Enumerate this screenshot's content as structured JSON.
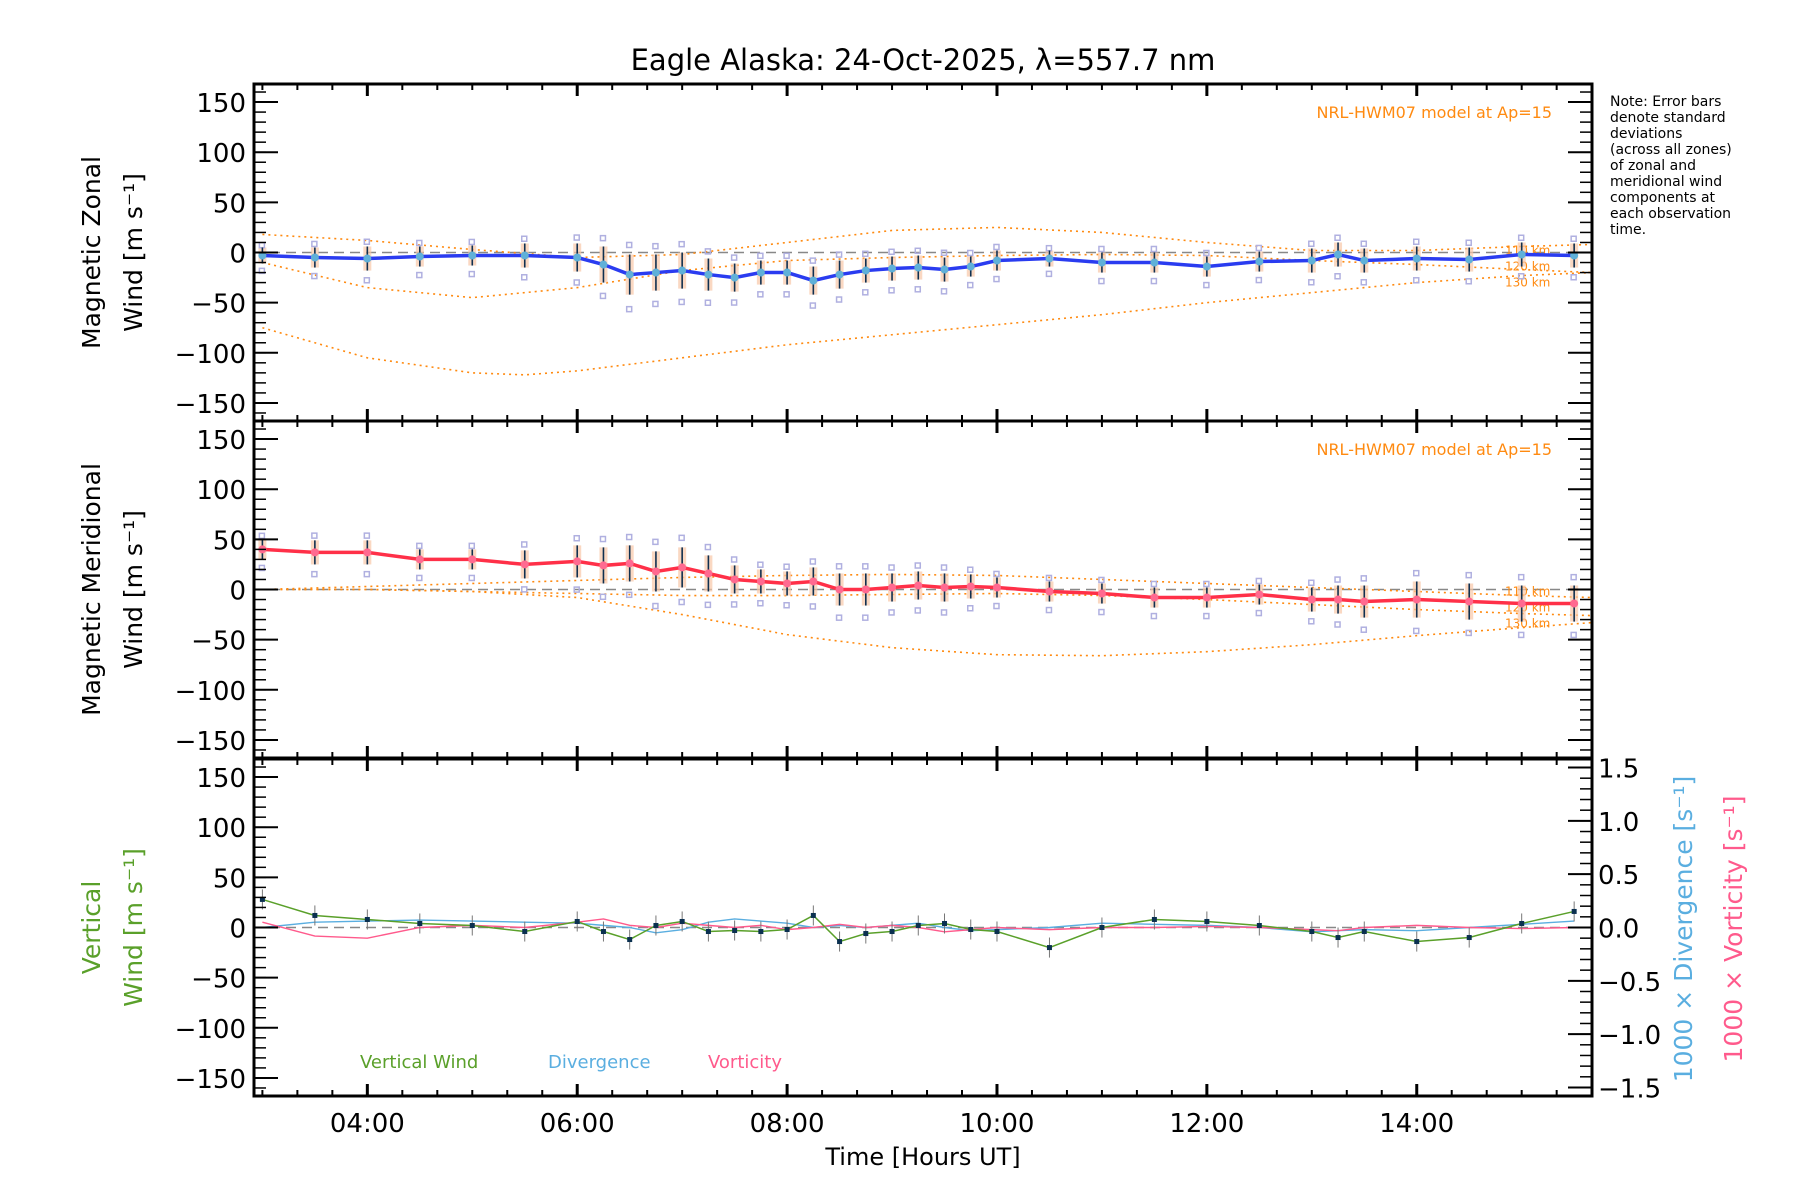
{
  "chart_data": {
    "type": "line",
    "title": "Eagle Alaska: 24-Oct-2025, λ=557.7 nm",
    "xlabel": "Time [Hours UT]",
    "xlim": [
      2.92,
      15.67
    ],
    "xticks": [
      4,
      6,
      8,
      10,
      12,
      14
    ],
    "xtick_labels": [
      "04:00",
      "06:00",
      "08:00",
      "10:00",
      "12:00",
      "14:00"
    ],
    "note": [
      "Note: Error bars",
      "denote standard",
      "deviations",
      "(across all zones)",
      "of zonal and",
      "meridional wind",
      "components at",
      "each observation",
      "time."
    ],
    "colors": {
      "zonal": "#2a3cf0",
      "meridional": "#ff3048",
      "vertical": "#5aa02a",
      "divergence": "#5aaee0",
      "vorticity": "#ff5a8c",
      "model": "#ff8a10",
      "point": "#60b0d8",
      "errbar": "#103050"
    },
    "x": [
      3.0,
      3.5,
      4.0,
      4.5,
      5.0,
      5.5,
      6.0,
      6.25,
      6.5,
      6.75,
      7.0,
      7.25,
      7.5,
      7.75,
      8.0,
      8.25,
      8.5,
      8.75,
      9.0,
      9.25,
      9.5,
      9.75,
      10.0,
      10.5,
      11.0,
      11.5,
      12.0,
      12.5,
      13.0,
      13.25,
      13.5,
      14.0,
      14.5,
      15.0,
      15.5
    ],
    "panels": [
      {
        "ylabel": [
          "Magnetic Zonal",
          "Wind [m s⁻¹]"
        ],
        "ylim": [
          -168,
          168
        ],
        "yticks": [
          150,
          100,
          50,
          0,
          -50,
          -100,
          -150
        ],
        "ytick_labels": [
          "150",
          "100",
          "50",
          "0",
          "−50",
          "−100",
          "−150"
        ],
        "model_label": "NRL-HWM07 model at Ap=15",
        "series": [
          {
            "name": "Zonal wind",
            "values": [
              -3,
              -5,
              -6,
              -4,
              -3,
              -3,
              -5,
              -12,
              -22,
              -20,
              -18,
              -22,
              -25,
              -20,
              -20,
              -28,
              -22,
              -18,
              -16,
              -15,
              -17,
              -14,
              -8,
              -6,
              -10,
              -10,
              -14,
              -9,
              -8,
              -2,
              -8,
              -6,
              -7,
              -2,
              -3
            ],
            "std": [
              8,
              10,
              12,
              10,
              10,
              12,
              14,
              18,
              20,
              18,
              18,
              16,
              14,
              12,
              12,
              14,
              14,
              12,
              12,
              12,
              12,
              10,
              10,
              8,
              10,
              10,
              10,
              10,
              12,
              12,
              12,
              12,
              12,
              12,
              12
            ]
          }
        ],
        "models": [
          {
            "label": "110 km",
            "x": [
              3,
              4,
              5,
              6,
              7,
              8,
              9,
              10,
              11,
              12,
              13,
              14,
              15,
              15.67
            ],
            "values": [
              18,
              12,
              3,
              -5,
              -2,
              10,
              22,
              25,
              20,
              10,
              2,
              2,
              6,
              8
            ]
          },
          {
            "label": "120 km",
            "x": [
              3,
              4,
              5,
              6,
              7,
              8,
              9,
              10,
              11,
              12,
              13,
              14,
              15,
              15.67
            ],
            "values": [
              -10,
              -35,
              -45,
              -35,
              -18,
              -8,
              -5,
              -3,
              -2,
              -3,
              -8,
              -12,
              -17,
              -20
            ]
          },
          {
            "label": "130 km",
            "x": [
              3,
              4,
              5,
              5.5,
              6,
              7,
              8,
              9,
              10,
              11,
              12,
              13,
              14,
              15,
              15.67
            ],
            "values": [
              -75,
              -105,
              -120,
              -122,
              -118,
              -105,
              -92,
              -82,
              -72,
              -62,
              -50,
              -40,
              -30,
              -23,
              -20
            ]
          }
        ]
      },
      {
        "ylabel": [
          "Magnetic Meridional",
          "Wind [m s⁻¹]"
        ],
        "ylim": [
          -168,
          168
        ],
        "yticks": [
          150,
          100,
          50,
          0,
          -50,
          -100,
          -150
        ],
        "ytick_labels": [
          "150",
          "100",
          "50",
          "0",
          "−50",
          "−100",
          "−150"
        ],
        "model_label": "NRL-HWM07 model at Ap=15",
        "series": [
          {
            "name": "Meridional wind",
            "values": [
              40,
              37,
              37,
              30,
              30,
              25,
              28,
              24,
              26,
              18,
              22,
              16,
              10,
              8,
              6,
              8,
              0,
              0,
              2,
              4,
              2,
              3,
              2,
              -2,
              -4,
              -8,
              -8,
              -5,
              -10,
              -10,
              -12,
              -10,
              -12,
              -14,
              -14
            ],
            "std": [
              10,
              12,
              12,
              10,
              10,
              14,
              16,
              18,
              18,
              20,
              20,
              18,
              14,
              12,
              12,
              14,
              16,
              16,
              14,
              14,
              14,
              12,
              10,
              10,
              10,
              10,
              10,
              10,
              12,
              14,
              16,
              18,
              18,
              18,
              18
            ]
          }
        ],
        "models": [
          {
            "label": "110 km",
            "x": [
              3,
              4,
              5,
              6,
              7,
              8,
              9,
              10,
              11,
              12,
              13,
              14,
              15,
              15.67
            ],
            "values": [
              0,
              3,
              6,
              9,
              12,
              14,
              15,
              14,
              10,
              6,
              2,
              -2,
              -6,
              -8
            ]
          },
          {
            "label": "120 km",
            "x": [
              3,
              4,
              5,
              6,
              7,
              8,
              9,
              10,
              11,
              12,
              13,
              14,
              15,
              15.67
            ],
            "values": [
              0,
              0,
              -2,
              -4,
              -6,
              -6,
              -5,
              -4,
              -6,
              -10,
              -15,
              -20,
              -24,
              -26
            ]
          },
          {
            "label": "130 km",
            "x": [
              3,
              4,
              5,
              6,
              7,
              8,
              9,
              10,
              11,
              12,
              13,
              14,
              15,
              15.67
            ],
            "values": [
              0,
              0,
              -2,
              -8,
              -25,
              -45,
              -58,
              -65,
              -66,
              -62,
              -55,
              -46,
              -38,
              -33
            ]
          }
        ]
      },
      {
        "ylabel": [
          "Vertical",
          "Wind [m s⁻¹]"
        ],
        "ylim": [
          -168,
          168
        ],
        "yticks": [
          150,
          100,
          50,
          0,
          -50,
          -100,
          -150
        ],
        "ytick_labels": [
          "150",
          "100",
          "50",
          "0",
          "−50",
          "−100",
          "−150"
        ],
        "y2label_div": "1000 × Divergence [s⁻¹]",
        "y2label_vort": "1000 × Vorticity [s⁻¹]",
        "y2lim": [
          -1.58,
          1.58
        ],
        "y2ticks": [
          1.5,
          1.0,
          0.5,
          0.0,
          -0.5,
          -1.0,
          -1.5
        ],
        "y2tick_labels": [
          "1.5",
          "1.0",
          "0.5",
          "0.0",
          "−0.5",
          "−1.0",
          "−1.5"
        ],
        "legend": [
          "Vertical Wind",
          "Divergence",
          "Vorticity"
        ],
        "series": [
          {
            "name": "Vertical Wind",
            "values": [
              28,
              12,
              8,
              4,
              2,
              -4,
              6,
              -4,
              -12,
              2,
              6,
              -4,
              -3,
              -4,
              -2,
              12,
              -14,
              -6,
              -4,
              2,
              4,
              -2,
              -4,
              -20,
              0,
              8,
              6,
              2,
              -4,
              -10,
              -4,
              -14,
              -10,
              4,
              16
            ]
          },
          {
            "name": "Divergence",
            "values": [
              0.0,
              0.05,
              0.06,
              0.07,
              0.06,
              0.05,
              0.04,
              0.02,
              0.0,
              -0.05,
              -0.02,
              0.05,
              0.08,
              0.06,
              0.04,
              0.0,
              0.02,
              0.0,
              0.02,
              0.04,
              0.0,
              -0.03,
              -0.02,
              0.0,
              0.04,
              0.03,
              0.02,
              0.0,
              -0.04,
              -0.03,
              -0.02,
              -0.03,
              0.0,
              0.03,
              0.06
            ]
          },
          {
            "name": "Vorticity",
            "values": [
              0.05,
              -0.08,
              -0.1,
              0.0,
              0.02,
              0.0,
              0.05,
              0.08,
              0.02,
              0.0,
              0.04,
              0.02,
              0.0,
              0.02,
              -0.02,
              0.0,
              0.03,
              0.0,
              0.02,
              0.0,
              -0.04,
              -0.02,
              0.0,
              -0.02,
              0.0,
              0.0,
              0.01,
              0.0,
              -0.02,
              -0.03,
              0.0,
              0.02,
              0.0,
              -0.01,
              0.0
            ]
          }
        ]
      }
    ]
  }
}
